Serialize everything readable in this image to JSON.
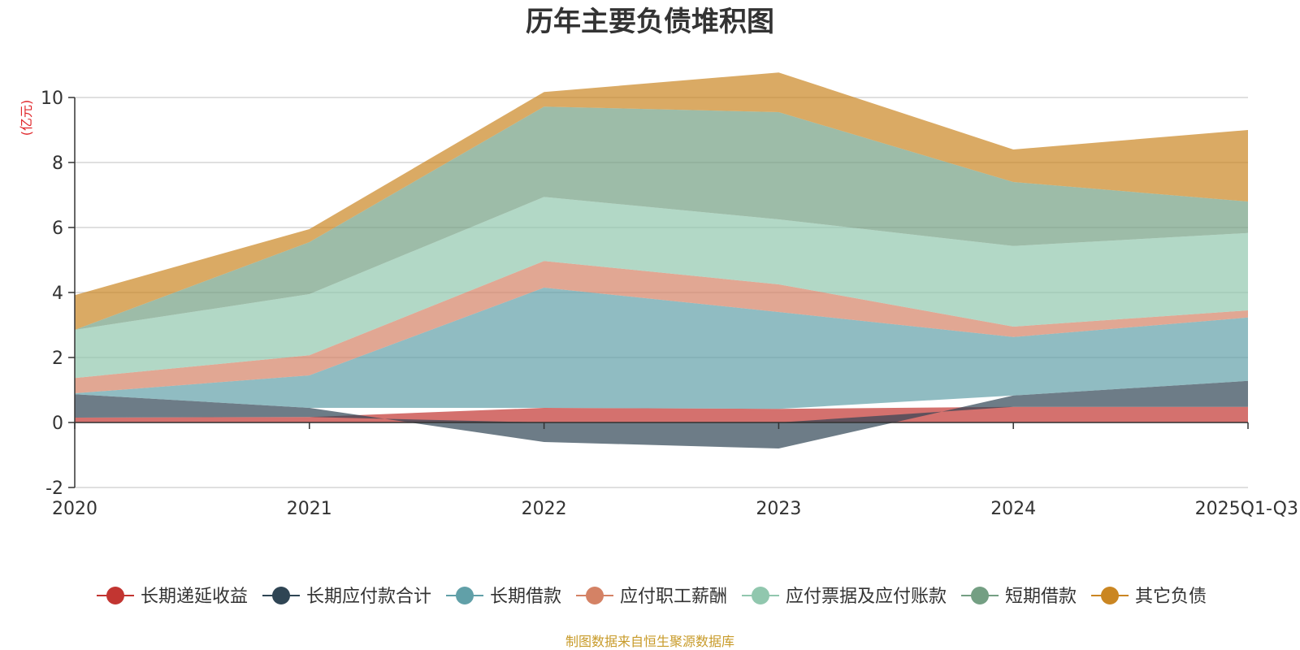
{
  "chart_data": {
    "type": "area",
    "stacked": true,
    "title": "历年主要负债堆积图",
    "ylabel": "(亿元)",
    "xlabel": "",
    "categories": [
      "2020",
      "2021",
      "2022",
      "2023",
      "2024",
      "2025Q1-Q3"
    ],
    "ylim": [
      -2,
      10
    ],
    "yticks": [
      -2,
      0,
      2,
      4,
      6,
      8,
      10
    ],
    "grid": true,
    "legend_position": "bottom",
    "series": [
      {
        "name": "长期递延收益",
        "color": "#c23531",
        "values": [
          0.15,
          0.17,
          0.45,
          0.42,
          0.48,
          0.48
        ]
      },
      {
        "name": "长期应付款合计",
        "color": "#2f4554",
        "values": [
          0.72,
          0.28,
          -0.6,
          -0.8,
          0.35,
          0.8
        ]
      },
      {
        "name": "长期借款",
        "color": "#61a0a8",
        "values": [
          0.03,
          1.0,
          3.7,
          2.98,
          1.8,
          1.95
        ]
      },
      {
        "name": "应付职工薪酬",
        "color": "#d48265",
        "values": [
          0.47,
          0.62,
          0.82,
          0.85,
          0.32,
          0.22
        ]
      },
      {
        "name": "应付票据及应付账款",
        "color": "#91c7ae",
        "values": [
          1.48,
          1.88,
          1.97,
          2.0,
          2.48,
          2.38
        ]
      },
      {
        "name": "短期借款",
        "color": "#749f83",
        "values": [
          0.0,
          1.6,
          2.78,
          3.3,
          1.97,
          0.97
        ]
      },
      {
        "name": "其它负债",
        "color": "#ca8622",
        "values": [
          1.07,
          0.4,
          0.45,
          1.22,
          1.0,
          2.2
        ]
      }
    ]
  },
  "source": "制图数据来自恒生聚源数据库"
}
